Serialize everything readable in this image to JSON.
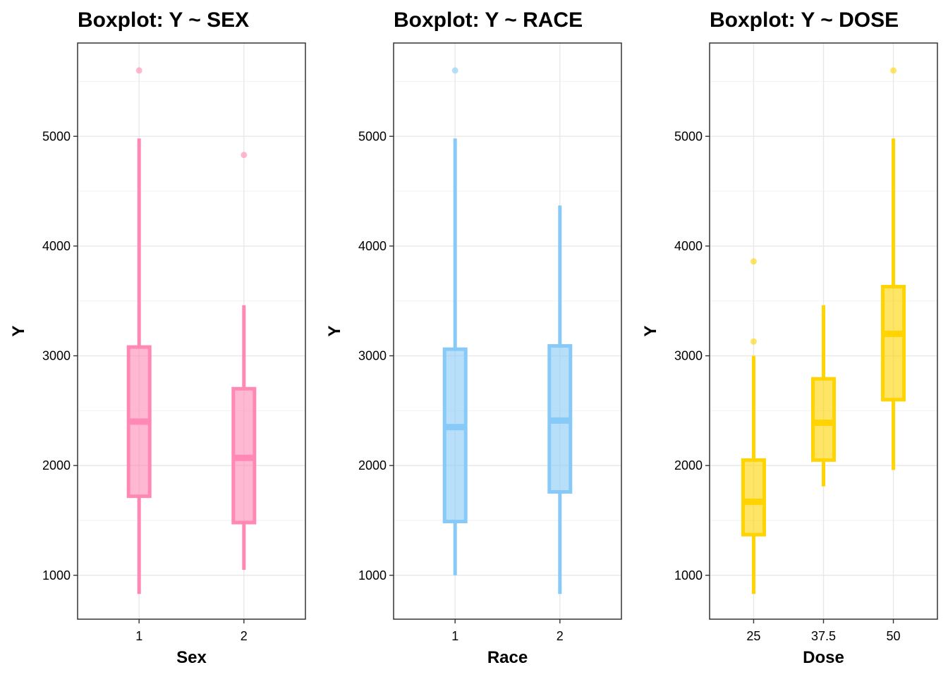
{
  "chart_data": [
    {
      "type": "boxplot",
      "title": "Boxplot: Y ~ SEX",
      "xlabel": "Sex",
      "ylabel": "Y",
      "ylim": [
        600,
        5850
      ],
      "yticks": [
        1000,
        2000,
        3000,
        4000,
        5000
      ],
      "grid": true,
      "color": "#FF88B4",
      "categories": [
        "1",
        "2"
      ],
      "boxes": [
        {
          "category": "1",
          "whisker_low": 830,
          "q1": 1720,
          "median": 2400,
          "q3": 3080,
          "whisker_high": 4980,
          "outliers": [
            5600
          ]
        },
        {
          "category": "2",
          "whisker_low": 1050,
          "q1": 1480,
          "median": 2070,
          "q3": 2700,
          "whisker_high": 3460,
          "outliers": [
            4830
          ]
        }
      ]
    },
    {
      "type": "boxplot",
      "title": "Boxplot: Y ~ RACE",
      "xlabel": "Race",
      "ylabel": "Y",
      "ylim": [
        600,
        5850
      ],
      "yticks": [
        1000,
        2000,
        3000,
        4000,
        5000
      ],
      "grid": true,
      "color": "#88CAF7",
      "categories": [
        "1",
        "2"
      ],
      "boxes": [
        {
          "category": "1",
          "whisker_low": 1000,
          "q1": 1490,
          "median": 2350,
          "q3": 3060,
          "whisker_high": 4980,
          "outliers": [
            5600
          ]
        },
        {
          "category": "2",
          "whisker_low": 830,
          "q1": 1760,
          "median": 2410,
          "q3": 3090,
          "whisker_high": 4370,
          "outliers": []
        }
      ]
    },
    {
      "type": "boxplot",
      "title": "Boxplot: Y ~ DOSE",
      "xlabel": "Dose",
      "ylabel": "Y",
      "ylim": [
        600,
        5850
      ],
      "yticks": [
        1000,
        2000,
        3000,
        4000,
        5000
      ],
      "grid": true,
      "color": "#FFD400",
      "categories": [
        "25",
        "37.5",
        "50"
      ],
      "boxes": [
        {
          "category": "25",
          "whisker_low": 830,
          "q1": 1370,
          "median": 1670,
          "q3": 2050,
          "whisker_high": 3000,
          "outliers": [
            3130,
            3860
          ]
        },
        {
          "category": "37.5",
          "whisker_low": 1810,
          "q1": 2050,
          "median": 2390,
          "q3": 2790,
          "whisker_high": 3460,
          "outliers": []
        },
        {
          "category": "50",
          "whisker_low": 1960,
          "q1": 2600,
          "median": 3200,
          "q3": 3630,
          "whisker_high": 4980,
          "outliers": [
            5600
          ]
        }
      ]
    }
  ]
}
